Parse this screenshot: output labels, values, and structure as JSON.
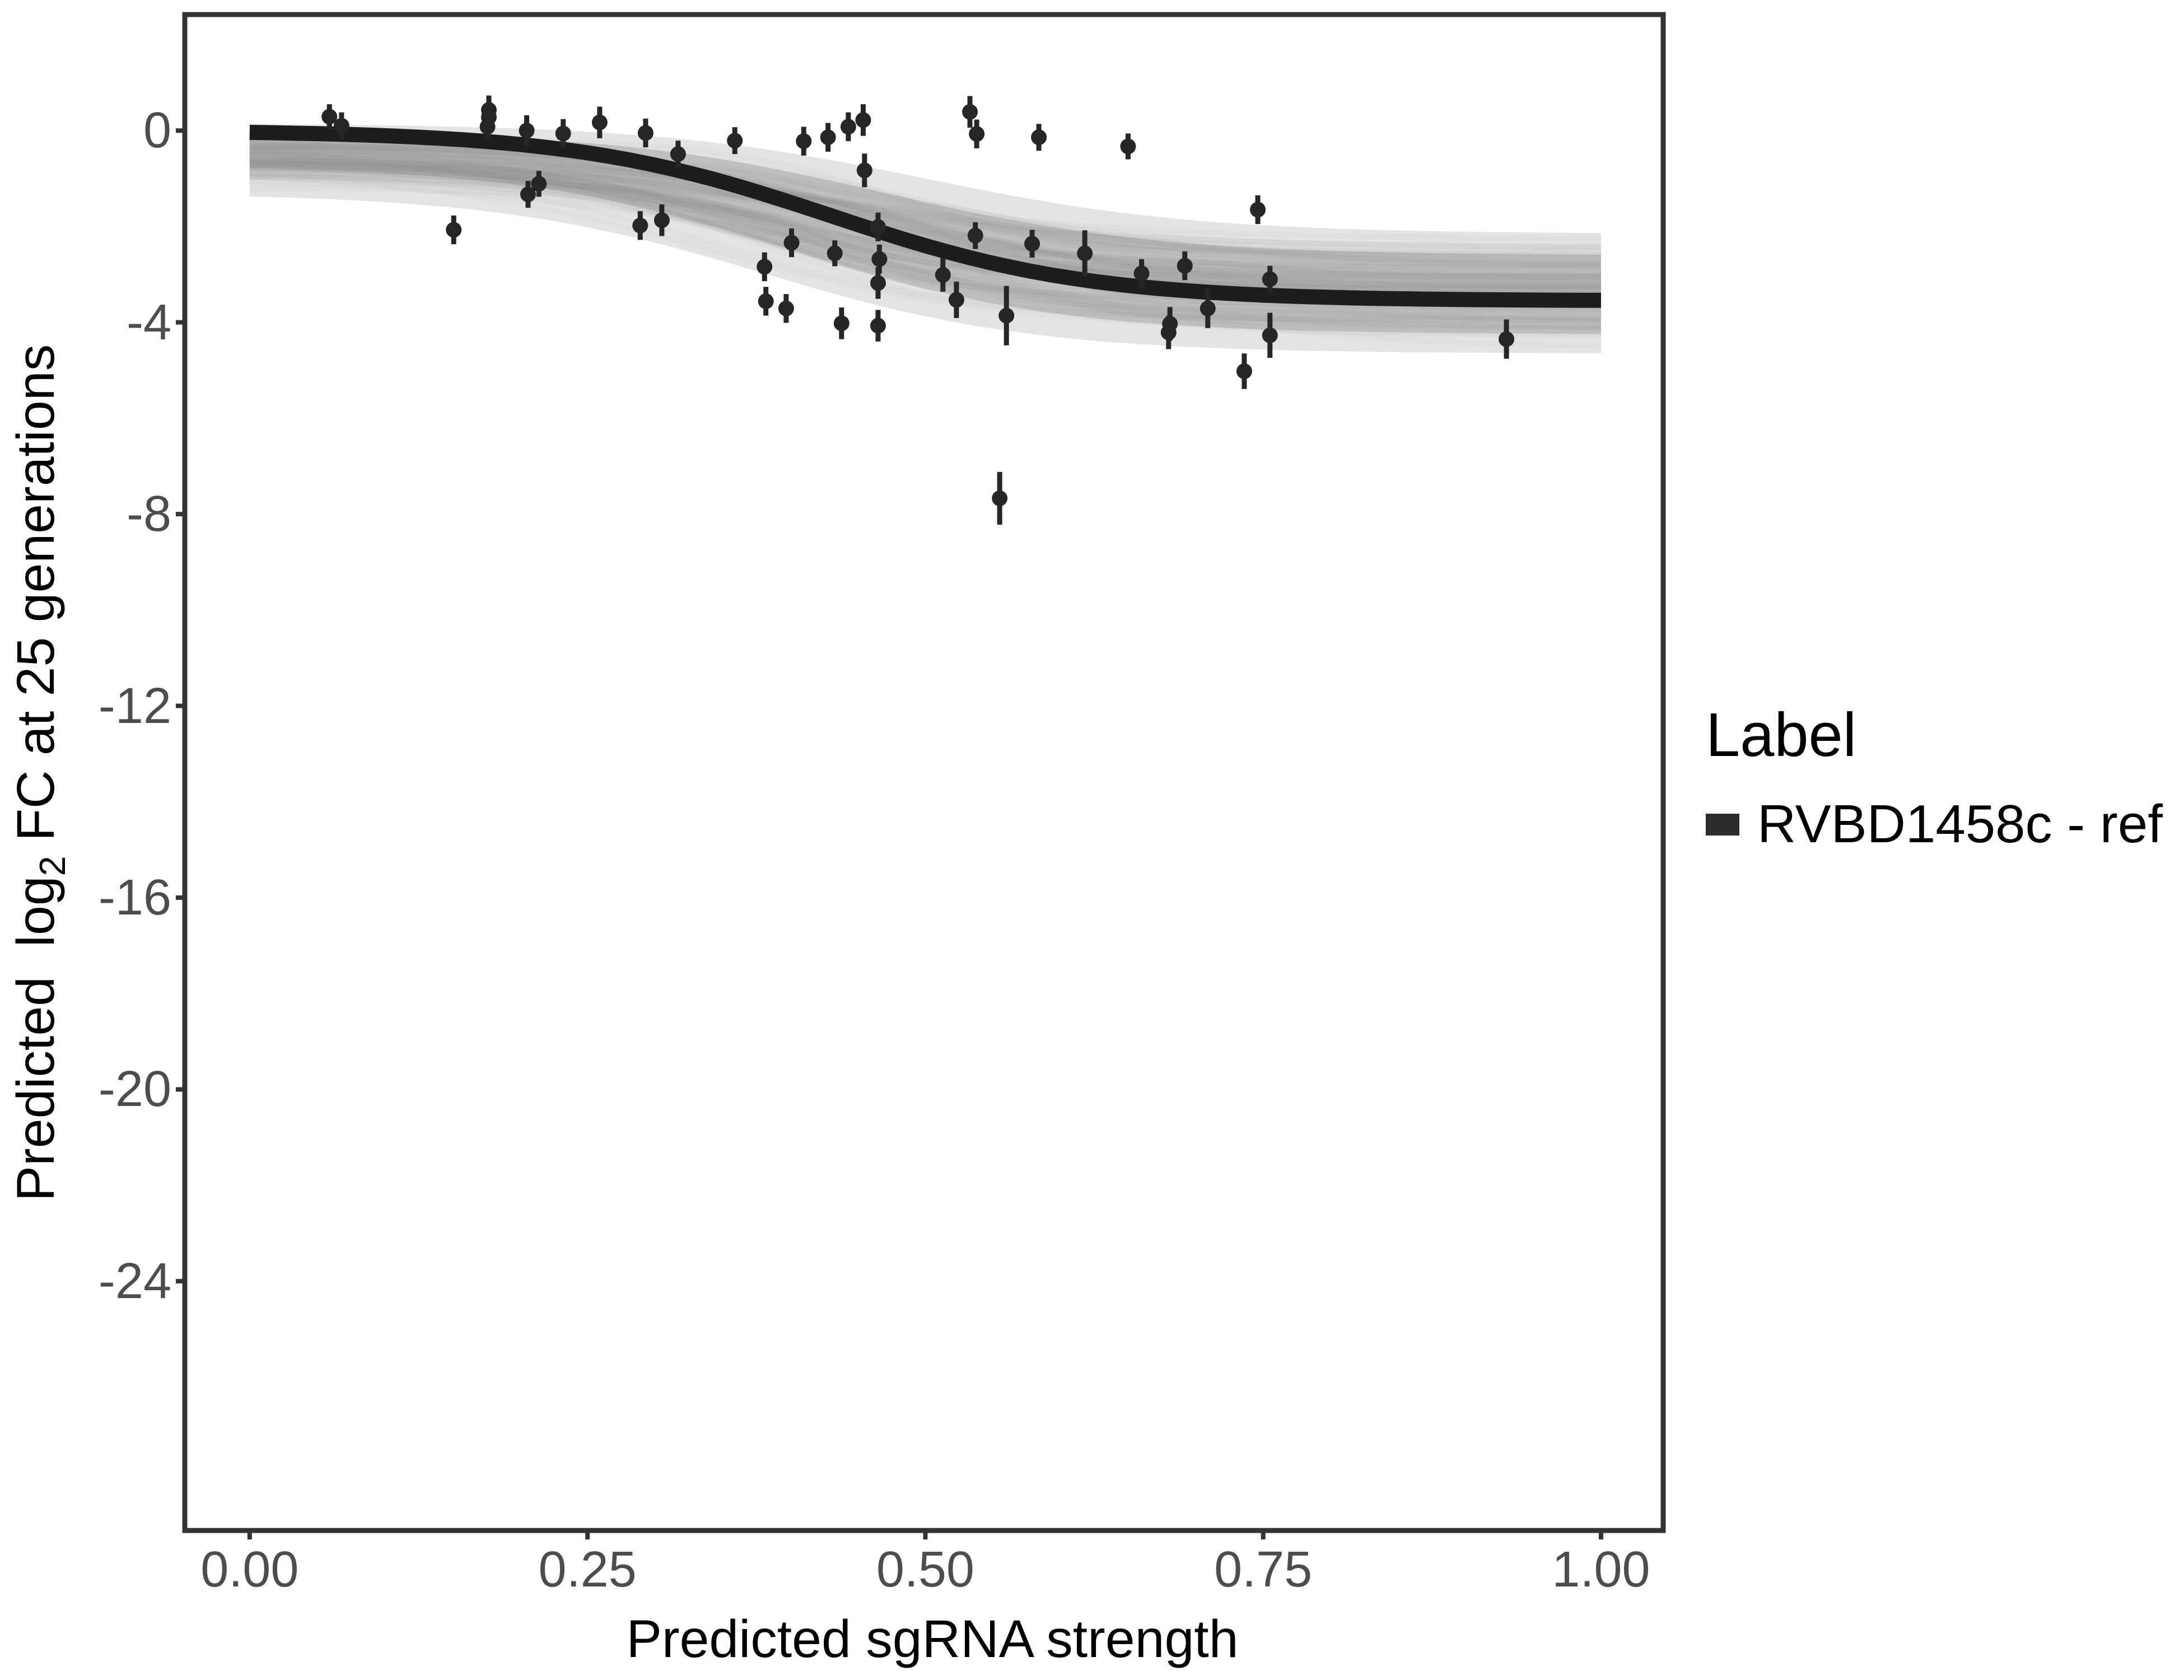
{
  "chart_data": {
    "type": "scatter",
    "title": "",
    "xlabel": "Predicted sgRNA strength",
    "ylabel": "Predicted log2 FC at 25 generations",
    "ylabel_parts": {
      "prefix": "Predicted  log",
      "sub": "2",
      "suffix": " FC at 25 generations"
    },
    "xlim": [
      -0.048,
      1.046
    ],
    "ylim": [
      -29.2,
      2.42
    ],
    "grid": "off",
    "legend_position": "right",
    "x_ticks": {
      "values": [
        0,
        0.25,
        0.5,
        0.75,
        1.0
      ],
      "labels": [
        "0.00",
        "0.25",
        "0.50",
        "0.75",
        "1.00"
      ]
    },
    "y_ticks": {
      "values": [
        0,
        -4,
        -8,
        -12,
        -16,
        -20,
        -24
      ],
      "labels": [
        "0",
        "-4",
        "-8",
        "-12",
        "-16",
        "-20",
        "-24"
      ]
    },
    "points_desc": "each point is [predicted_sgRNA_strength, predicted_log2FC, half_error_bar]",
    "points": [
      [
        0.059,
        0.29,
        0.26
      ],
      [
        0.068,
        0.1,
        0.28
      ],
      [
        0.151,
        -2.07,
        0.3
      ],
      [
        0.177,
        0.43,
        0.3
      ],
      [
        0.177,
        0.28,
        0.28
      ],
      [
        0.176,
        0.08,
        0.26
      ],
      [
        0.205,
        0.0,
        0.32
      ],
      [
        0.206,
        -1.33,
        0.28
      ],
      [
        0.214,
        -1.11,
        0.27
      ],
      [
        0.232,
        -0.06,
        0.3
      ],
      [
        0.259,
        0.17,
        0.33
      ],
      [
        0.289,
        -1.98,
        0.3
      ],
      [
        0.293,
        -0.05,
        0.3
      ],
      [
        0.305,
        -1.87,
        0.33
      ],
      [
        0.317,
        -0.49,
        0.28
      ],
      [
        0.359,
        -0.21,
        0.28
      ],
      [
        0.381,
        -2.84,
        0.3
      ],
      [
        0.382,
        -3.56,
        0.3
      ],
      [
        0.397,
        -3.71,
        0.3
      ],
      [
        0.401,
        -2.34,
        0.3
      ],
      [
        0.41,
        -0.22,
        0.3
      ],
      [
        0.428,
        -0.14,
        0.3
      ],
      [
        0.433,
        -2.56,
        0.27
      ],
      [
        0.438,
        -4.02,
        0.33
      ],
      [
        0.443,
        0.08,
        0.3
      ],
      [
        0.454,
        0.22,
        0.33
      ],
      [
        0.455,
        -0.83,
        0.35
      ],
      [
        0.465,
        -2.01,
        0.3
      ],
      [
        0.465,
        -3.18,
        0.33
      ],
      [
        0.465,
        -4.07,
        0.33
      ],
      [
        0.466,
        -2.68,
        0.3
      ],
      [
        0.513,
        -3.01,
        0.35
      ],
      [
        0.523,
        -3.53,
        0.38
      ],
      [
        0.533,
        0.39,
        0.33
      ],
      [
        0.537,
        -2.19,
        0.28
      ],
      [
        0.538,
        -0.07,
        0.3
      ],
      [
        0.555,
        -7.67,
        0.55
      ],
      [
        0.56,
        -3.86,
        0.62
      ],
      [
        0.579,
        -2.36,
        0.29
      ],
      [
        0.584,
        -0.14,
        0.28
      ],
      [
        0.618,
        -2.56,
        0.48
      ],
      [
        0.65,
        -0.33,
        0.27
      ],
      [
        0.66,
        -2.98,
        0.3
      ],
      [
        0.68,
        -4.21,
        0.35
      ],
      [
        0.681,
        -4.03,
        0.35
      ],
      [
        0.692,
        -2.82,
        0.3
      ],
      [
        0.709,
        -3.71,
        0.41
      ],
      [
        0.736,
        -5.02,
        0.37
      ],
      [
        0.746,
        -1.65,
        0.3
      ],
      [
        0.755,
        -3.1,
        0.28
      ],
      [
        0.755,
        -4.27,
        0.47
      ],
      [
        0.93,
        -4.35,
        0.41
      ]
    ],
    "fit_curve": {
      "shape": "sigmoid",
      "y_left": 0.0,
      "y_right": -3.55,
      "midpoint": 0.43,
      "k": 0.095,
      "x_range": [
        0,
        1
      ],
      "color": "#1d1d1d",
      "width": 27
    },
    "ensemble": {
      "count": 110,
      "y_left_range": [
        -1.25,
        0.15
      ],
      "y_right_range": [
        -4.6,
        -2.2
      ],
      "midpoint_range": [
        0.34,
        0.52
      ],
      "k_range": [
        0.07,
        0.13
      ],
      "color": "#8c8c8c",
      "opacity": 0.05,
      "width": 10
    },
    "bands": {
      "outer": {
        "upper": {
          "c": 0.15,
          "f": -2.15,
          "x0": 0.5,
          "k": 0.1
        },
        "lower": {
          "c": -1.3,
          "f": -4.65,
          "x0": 0.38,
          "k": 0.1
        },
        "fill": "#cdcdcd",
        "opacity": 0.55
      },
      "inner": {
        "upper": {
          "c": 0.0,
          "f": -2.6,
          "x0": 0.47,
          "k": 0.1
        },
        "lower": {
          "c": -0.72,
          "f": -4.25,
          "x0": 0.4,
          "k": 0.1
        },
        "fill": "#b7b7b7",
        "opacity": 0.65
      }
    },
    "legend": {
      "title": "Label",
      "items": [
        {
          "label": "RVBD1458c - ref",
          "key_color": "#2d2d2d"
        }
      ]
    },
    "colors": {
      "panel_border": "#333333",
      "tick": "#333333",
      "tick_label": "#4d4d4d",
      "axis_title": "#000000",
      "point": "#262626",
      "error_bar": "#262626"
    }
  }
}
